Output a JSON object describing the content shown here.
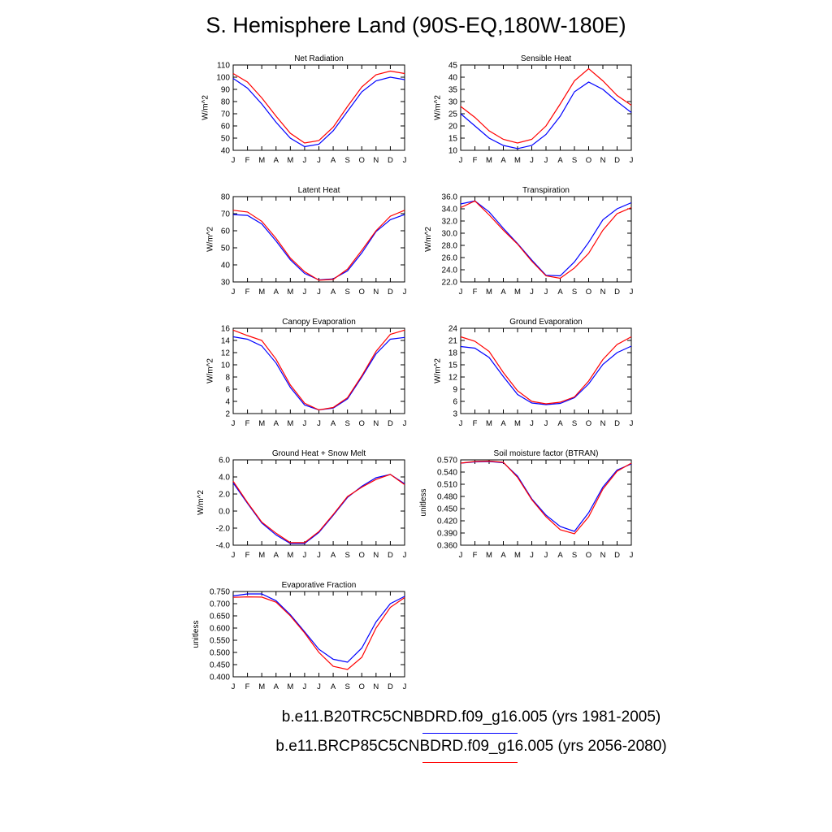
{
  "title": "S. Hemisphere Land (90S-EQ,180W-180E)",
  "colors": {
    "baseline": "#0000ff",
    "future": "#ff0000"
  },
  "legend": [
    {
      "label": "b.e11.B20TRC5CNBDRD.f09_g16.005 (yrs 1981-2005)",
      "color": "#0000ff"
    },
    {
      "label": "b.e11.BRCP85C5CNBDRD.f09_g16.005 (yrs 2056-2080)",
      "color": "#ff0000"
    }
  ],
  "chart_data": [
    {
      "type": "line",
      "title": "Net Radiation",
      "ylabel": "W/m^2",
      "categories": [
        "J",
        "F",
        "M",
        "A",
        "M",
        "J",
        "J",
        "A",
        "S",
        "O",
        "N",
        "D",
        "J"
      ],
      "ylim": [
        40,
        110
      ],
      "yticks": [
        "40",
        "50",
        "60",
        "70",
        "80",
        "90",
        "100",
        "110"
      ],
      "series": [
        {
          "color": "#0000ff",
          "values": [
            99,
            91,
            78,
            63,
            50,
            43,
            45,
            56,
            72,
            88,
            97,
            100,
            98
          ]
        },
        {
          "color": "#ff0000",
          "values": [
            103,
            96,
            83,
            68,
            54,
            46,
            48,
            59,
            76,
            92,
            102,
            105,
            103
          ]
        }
      ]
    },
    {
      "type": "line",
      "title": "Sensible Heat",
      "ylabel": "W/m^2",
      "categories": [
        "J",
        "F",
        "M",
        "A",
        "M",
        "J",
        "J",
        "A",
        "S",
        "O",
        "N",
        "D",
        "J"
      ],
      "ylim": [
        10,
        45
      ],
      "yticks": [
        "10",
        "15",
        "20",
        "25",
        "30",
        "35",
        "40",
        "45"
      ],
      "series": [
        {
          "color": "#0000ff",
          "values": [
            25,
            20,
            15,
            12,
            10.7,
            12,
            16.5,
            24,
            34,
            38,
            35,
            30,
            25.5
          ]
        },
        {
          "color": "#ff0000",
          "values": [
            28,
            23.5,
            18,
            14.5,
            13,
            14.5,
            20,
            29,
            38.5,
            43.5,
            38.5,
            32.5,
            28.5
          ]
        }
      ]
    },
    {
      "type": "line",
      "title": "Latent Heat",
      "ylabel": "W/m^2",
      "categories": [
        "J",
        "F",
        "M",
        "A",
        "M",
        "J",
        "J",
        "A",
        "S",
        "O",
        "N",
        "D",
        "J"
      ],
      "ylim": [
        30,
        80
      ],
      "yticks": [
        "30",
        "40",
        "50",
        "60",
        "70",
        "80"
      ],
      "series": [
        {
          "color": "#0000ff",
          "values": [
            69.5,
            69,
            64,
            54,
            43,
            35,
            31.2,
            31.8,
            36.5,
            47,
            59.5,
            66.5,
            69.5
          ]
        },
        {
          "color": "#ff0000",
          "values": [
            72,
            71,
            65.5,
            55.5,
            44,
            36,
            31,
            31.5,
            37.5,
            48.5,
            60,
            68.5,
            72
          ]
        }
      ]
    },
    {
      "type": "line",
      "title": "Transpiration",
      "ylabel": "W/m^2",
      "categories": [
        "J",
        "F",
        "M",
        "A",
        "M",
        "J",
        "J",
        "A",
        "S",
        "O",
        "N",
        "D",
        "J"
      ],
      "ylim": [
        22,
        36
      ],
      "yticks": [
        "22.0",
        "24.0",
        "26.0",
        "28.0",
        "30.0",
        "32.0",
        "34.0",
        "36.0"
      ],
      "series": [
        {
          "color": "#0000ff",
          "values": [
            34.8,
            35.3,
            33.5,
            30.8,
            28.3,
            25.6,
            23.1,
            23,
            25.3,
            28.5,
            32.2,
            34,
            35
          ]
        },
        {
          "color": "#ff0000",
          "values": [
            34.2,
            35.3,
            33,
            30.5,
            28.2,
            25.4,
            23,
            22.6,
            24.3,
            26.7,
            30.5,
            33.2,
            34.2
          ]
        }
      ]
    },
    {
      "type": "line",
      "title": "Canopy Evaporation",
      "ylabel": "W/m^2",
      "categories": [
        "J",
        "F",
        "M",
        "A",
        "M",
        "J",
        "J",
        "A",
        "S",
        "O",
        "N",
        "D",
        "J"
      ],
      "ylim": [
        2,
        16
      ],
      "yticks": [
        "2",
        "4",
        "6",
        "8",
        "10",
        "12",
        "14",
        "16"
      ],
      "series": [
        {
          "color": "#0000ff",
          "values": [
            14.6,
            14.2,
            13.1,
            10.3,
            6.3,
            3.4,
            2.6,
            2.9,
            4.4,
            8,
            11.8,
            14.2,
            14.5
          ]
        },
        {
          "color": "#ff0000",
          "values": [
            15.7,
            14.8,
            14,
            10.9,
            6.7,
            3.7,
            2.6,
            3,
            4.6,
            8.2,
            12.2,
            15,
            15.7
          ]
        }
      ]
    },
    {
      "type": "line",
      "title": "Ground Evaporation",
      "ylabel": "W/m^2",
      "categories": [
        "J",
        "F",
        "M",
        "A",
        "M",
        "J",
        "J",
        "A",
        "S",
        "O",
        "N",
        "D",
        "J"
      ],
      "ylim": [
        3,
        24
      ],
      "yticks": [
        "3",
        "6",
        "9",
        "12",
        "15",
        "18",
        "21",
        "24"
      ],
      "series": [
        {
          "color": "#0000ff",
          "values": [
            19.5,
            19.1,
            16.8,
            12.1,
            7.7,
            5.6,
            5.2,
            5.5,
            6.9,
            10.3,
            15.1,
            18,
            19.6
          ]
        },
        {
          "color": "#ff0000",
          "values": [
            21.9,
            20.8,
            18.3,
            13.1,
            8.6,
            6,
            5.4,
            5.8,
            7.1,
            11,
            16.3,
            20,
            21.9
          ]
        }
      ]
    },
    {
      "type": "line",
      "title": "Ground Heat + Snow Melt",
      "ylabel": "W/m^2",
      "categories": [
        "J",
        "F",
        "M",
        "A",
        "M",
        "J",
        "J",
        "A",
        "S",
        "O",
        "N",
        "D",
        "J"
      ],
      "ylim": [
        -4,
        6
      ],
      "yticks": [
        "-4.0",
        "-2.0",
        "0.0",
        "2.0",
        "4.0",
        "6.0"
      ],
      "series": [
        {
          "color": "#0000ff",
          "values": [
            3.3,
            0.9,
            -1.4,
            -2.8,
            -3.8,
            -3.8,
            -2.5,
            -0.5,
            1.6,
            2.9,
            3.9,
            4.3,
            3.2
          ]
        },
        {
          "color": "#ff0000",
          "values": [
            3.5,
            1,
            -1.3,
            -2.6,
            -3.7,
            -3.7,
            -2.4,
            -0.4,
            1.7,
            2.8,
            3.7,
            4.3,
            3.1
          ]
        }
      ]
    },
    {
      "type": "line",
      "title": "Soil moisture factor (BTRAN)",
      "ylabel": "unitless",
      "categories": [
        "J",
        "F",
        "M",
        "A",
        "M",
        "J",
        "J",
        "A",
        "S",
        "O",
        "N",
        "D",
        "J"
      ],
      "ylim": [
        0.36,
        0.57
      ],
      "yticks": [
        "0.360",
        "0.390",
        "0.420",
        "0.450",
        "0.480",
        "0.510",
        "0.540",
        "0.570"
      ],
      "series": [
        {
          "color": "#0000ff",
          "values": [
            0.562,
            0.565,
            0.566,
            0.563,
            0.53,
            0.474,
            0.434,
            0.406,
            0.394,
            0.44,
            0.503,
            0.545,
            0.56
          ]
        },
        {
          "color": "#ff0000",
          "values": [
            0.562,
            0.566,
            0.567,
            0.564,
            0.527,
            0.472,
            0.43,
            0.398,
            0.388,
            0.43,
            0.498,
            0.542,
            0.562
          ]
        }
      ]
    },
    {
      "type": "line",
      "title": "Evaporative Fraction",
      "ylabel": "unitless",
      "categories": [
        "J",
        "F",
        "M",
        "A",
        "M",
        "J",
        "J",
        "A",
        "S",
        "O",
        "N",
        "D",
        "J"
      ],
      "ylim": [
        0.4,
        0.75
      ],
      "yticks": [
        "0.400",
        "0.450",
        "0.500",
        "0.550",
        "0.600",
        "0.650",
        "0.700",
        "0.750"
      ],
      "series": [
        {
          "color": "#0000ff",
          "values": [
            0.732,
            0.74,
            0.74,
            0.712,
            0.655,
            0.585,
            0.513,
            0.472,
            0.46,
            0.518,
            0.625,
            0.7,
            0.73
          ]
        },
        {
          "color": "#ff0000",
          "values": [
            0.726,
            0.728,
            0.727,
            0.706,
            0.65,
            0.58,
            0.5,
            0.443,
            0.43,
            0.48,
            0.6,
            0.685,
            0.725
          ]
        }
      ]
    }
  ]
}
